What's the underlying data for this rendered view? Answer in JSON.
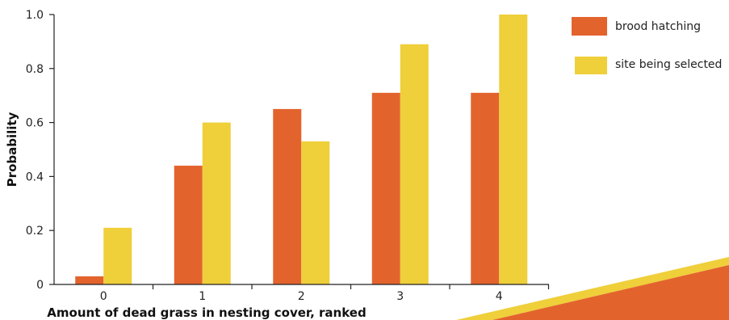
{
  "chart_data": {
    "type": "bar",
    "categories": [
      "0",
      "1",
      "2",
      "3",
      "4"
    ],
    "series": [
      {
        "name": "brood hatching",
        "values": [
          0.03,
          0.44,
          0.65,
          0.71,
          0.71
        ]
      },
      {
        "name": "site being selected",
        "values": [
          0.21,
          0.6,
          0.53,
          0.89,
          1.0
        ]
      }
    ],
    "xlabel": "Amount of dead grass in nesting cover, ranked",
    "ylabel": "Probability",
    "ylim": [
      0,
      1.0
    ],
    "yticks": [
      "0",
      "0.2",
      "0.4",
      "0.6",
      "0.8",
      "1.0"
    ],
    "legend_position": "top-right",
    "grid": false,
    "colors": {
      "brood hatching": "#E3632D",
      "site being selected": "#EFCF3A",
      "axis": "#222222",
      "decor_orange": "#E3632D",
      "decor_yellow": "#EFCF3A"
    }
  }
}
